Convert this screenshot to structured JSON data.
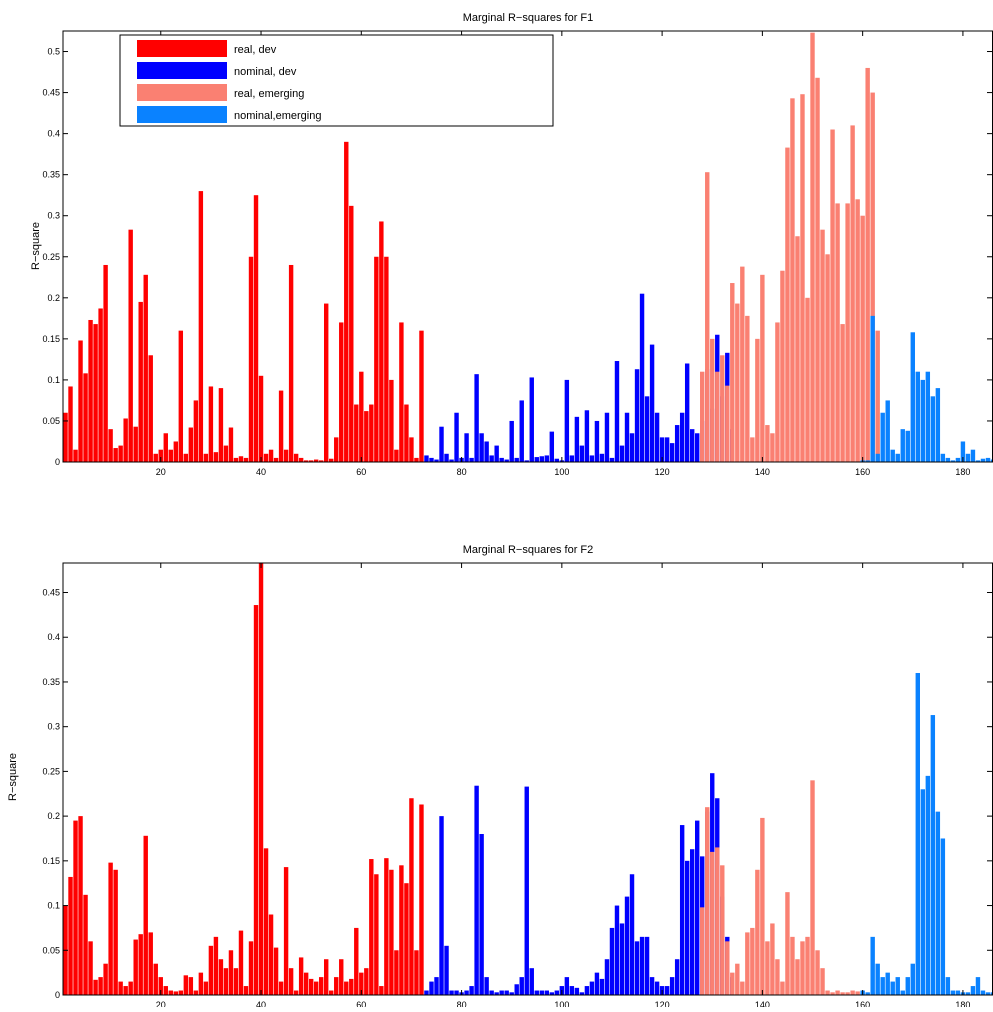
{
  "colors": {
    "real_dev": "#ff0000",
    "nominal_dev": "#0000ff",
    "real_emerging": "#fa8072",
    "nominal_emerging": "#0a82ff",
    "axes": "#000000",
    "background": "#ffffff"
  },
  "chart_data": [
    {
      "type": "bar",
      "title": "Marginal R−squares for F1",
      "xlabel": "",
      "ylabel": "R−square",
      "xlim": [
        0.5,
        186
      ],
      "ylim": [
        0,
        0.525
      ],
      "xticks": [
        20,
        40,
        60,
        80,
        100,
        120,
        140,
        160,
        180
      ],
      "yticks": [
        0,
        0.05,
        0.1,
        0.15,
        0.2,
        0.25,
        0.3,
        0.35,
        0.4,
        0.45,
        0.5
      ],
      "grid": false,
      "legend_position": "top-left",
      "series": [
        {
          "name": "real, dev",
          "color_key": "real_dev",
          "x_start": 1,
          "values": [
            0.06,
            0.092,
            0.015,
            0.148,
            0.108,
            0.173,
            0.168,
            0.187,
            0.24,
            0.04,
            0.017,
            0.02,
            0.053,
            0.283,
            0.043,
            0.195,
            0.228,
            0.13,
            0.01,
            0.015,
            0.035,
            0.015,
            0.025,
            0.16,
            0.01,
            0.042,
            0.075,
            0.33,
            0.01,
            0.092,
            0.012,
            0.09,
            0.02,
            0.042,
            0.005,
            0.007,
            0.005,
            0.25,
            0.325,
            0.105,
            0.01,
            0.015,
            0.005,
            0.087,
            0.015,
            0.24,
            0.01,
            0.005,
            0.002,
            0.002,
            0.003,
            0.002,
            0.193,
            0.004,
            0.03,
            0.17,
            0.39,
            0.312,
            0.07,
            0.11,
            0.062,
            0.07,
            0.25,
            0.293,
            0.25,
            0.1,
            0.015,
            0.17,
            0.07,
            0.03,
            0.005,
            0.16
          ]
        },
        {
          "name": "nominal, dev",
          "color_key": "nominal_dev",
          "x_start": 73,
          "values": [
            0.008,
            0.005,
            0.003,
            0.043,
            0.01,
            0.003,
            0.06,
            0.005,
            0.035,
            0.005,
            0.107,
            0.035,
            0.025,
            0.008,
            0.02,
            0.005,
            0.003,
            0.05,
            0.005,
            0.075,
            0.002,
            0.103,
            0.006,
            0.007,
            0.008,
            0.037,
            0.004,
            0.002,
            0.1,
            0.008,
            0.055,
            0.02,
            0.063,
            0.008,
            0.05,
            0.01,
            0.06,
            0.005,
            0.123,
            0.02,
            0.06,
            0.035,
            0.113,
            0.205,
            0.08,
            0.143,
            0.06,
            0.03,
            0.03,
            0.023,
            0.045,
            0.06,
            0.12,
            0.04,
            0.035,
            0.05,
            0.113,
            0.065,
            0.155,
            0.08,
            0.133,
            0.04
          ]
        },
        {
          "name": "real, emerging",
          "color_key": "real_emerging",
          "x_start": 128,
          "values": [
            0.11,
            0.353,
            0.15,
            0.11,
            0.13,
            0.093,
            0.218,
            0.193,
            0.238,
            0.178,
            0.03,
            0.15,
            0.228,
            0.045,
            0.035,
            0.17,
            0.233,
            0.383,
            0.443,
            0.275,
            0.448,
            0.2,
            0.523,
            0.468,
            0.283,
            0.253,
            0.405,
            0.315,
            0.168,
            0.315,
            0.41,
            0.32,
            0.3,
            0.48,
            0.45,
            0.16
          ]
        },
        {
          "name": "nominal,emerging",
          "color_key": "nominal_emerging",
          "x_start": 160,
          "values": [
            0.002,
            0.002,
            0.178,
            0.01,
            0.06,
            0.075,
            0.015,
            0.01,
            0.04,
            0.038,
            0.158,
            0.11,
            0.1,
            0.11,
            0.08,
            0.09,
            0.01,
            0.005,
            0.002,
            0.005,
            0.025,
            0.01,
            0.015,
            0.002,
            0.004,
            0.005,
            0.003,
            0.002,
            0.015,
            0.01,
            0.005,
            0.015
          ]
        }
      ]
    },
    {
      "type": "bar",
      "title": "Marginal R−squares for F2",
      "xlabel": "",
      "ylabel": "R−square",
      "xlim": [
        0.5,
        186
      ],
      "ylim": [
        0,
        0.483
      ],
      "xticks": [
        20,
        40,
        60,
        80,
        100,
        120,
        140,
        160,
        180
      ],
      "yticks": [
        0,
        0.05,
        0.1,
        0.15,
        0.2,
        0.25,
        0.3,
        0.35,
        0.4,
        0.45
      ],
      "grid": false,
      "series": [
        {
          "name": "real, dev",
          "color_key": "real_dev",
          "x_start": 1,
          "values": [
            0.1,
            0.132,
            0.195,
            0.2,
            0.112,
            0.06,
            0.017,
            0.02,
            0.035,
            0.148,
            0.14,
            0.015,
            0.01,
            0.015,
            0.062,
            0.068,
            0.178,
            0.07,
            0.035,
            0.02,
            0.01,
            0.005,
            0.004,
            0.005,
            0.022,
            0.02,
            0.005,
            0.025,
            0.015,
            0.055,
            0.065,
            0.04,
            0.03,
            0.05,
            0.03,
            0.072,
            0.01,
            0.06,
            0.436,
            0.483,
            0.164,
            0.09,
            0.053,
            0.015,
            0.143,
            0.03,
            0.005,
            0.042,
            0.025,
            0.018,
            0.015,
            0.02,
            0.04,
            0.005,
            0.02,
            0.04,
            0.015,
            0.018,
            0.075,
            0.025,
            0.03,
            0.152,
            0.135,
            0.01,
            0.153,
            0.14,
            0.05,
            0.145,
            0.125,
            0.22,
            0.05,
            0.213
          ]
        },
        {
          "name": "nominal, dev",
          "color_key": "nominal_dev",
          "x_start": 73,
          "values": [
            0.005,
            0.015,
            0.02,
            0.2,
            0.055,
            0.005,
            0.005,
            0.003,
            0.005,
            0.01,
            0.234,
            0.18,
            0.02,
            0.005,
            0.003,
            0.005,
            0.005,
            0.003,
            0.012,
            0.02,
            0.233,
            0.03,
            0.005,
            0.005,
            0.005,
            0.003,
            0.005,
            0.01,
            0.02,
            0.01,
            0.008,
            0.003,
            0.01,
            0.015,
            0.025,
            0.018,
            0.04,
            0.075,
            0.1,
            0.08,
            0.11,
            0.135,
            0.06,
            0.065,
            0.065,
            0.02,
            0.015,
            0.01,
            0.01,
            0.02,
            0.04,
            0.19,
            0.15,
            0.163,
            0.195,
            0.155,
            0.205,
            0.248,
            0.22,
            0.11,
            0.065,
            0.02
          ]
        },
        {
          "name": "real, emerging",
          "color_key": "real_emerging",
          "x_start": 128,
          "values": [
            0.098,
            0.21,
            0.16,
            0.165,
            0.145,
            0.06,
            0.025,
            0.035,
            0.015,
            0.07,
            0.075,
            0.14,
            0.198,
            0.06,
            0.08,
            0.04,
            0.015,
            0.115,
            0.065,
            0.04,
            0.06,
            0.065,
            0.24,
            0.05,
            0.03,
            0.005,
            0.003,
            0.005,
            0.003,
            0.003,
            0.005,
            0.004,
            0.002,
            0.002,
            0.003,
            0.003
          ]
        },
        {
          "name": "nominal,emerging",
          "color_key": "nominal_emerging",
          "x_start": 160,
          "values": [
            0.005,
            0.003,
            0.065,
            0.035,
            0.02,
            0.025,
            0.015,
            0.02,
            0.005,
            0.02,
            0.035,
            0.36,
            0.23,
            0.245,
            0.313,
            0.205,
            0.175,
            0.02,
            0.005,
            0.005,
            0.003,
            0.003,
            0.01,
            0.02,
            0.005,
            0.003,
            0.003,
            0.035,
            0.02,
            0.03,
            0.015,
            0.13
          ]
        }
      ]
    }
  ]
}
